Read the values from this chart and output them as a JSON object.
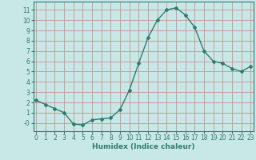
{
  "x": [
    0,
    1,
    2,
    3,
    4,
    5,
    6,
    7,
    8,
    9,
    10,
    11,
    12,
    13,
    14,
    15,
    16,
    17,
    18,
    19,
    20,
    21,
    22,
    23
  ],
  "y": [
    2.2,
    1.8,
    1.4,
    1.0,
    -0.1,
    -0.2,
    0.3,
    0.4,
    0.5,
    1.3,
    3.2,
    5.8,
    8.3,
    10.0,
    11.0,
    11.2,
    10.5,
    9.3,
    7.0,
    6.0,
    5.8,
    5.3,
    5.0,
    5.5
  ],
  "line_color": "#2d7d6f",
  "bg_color": "#c8e8e8",
  "grid_color": "#d08080",
  "xlabel": "Humidex (Indice chaleur)",
  "ylim": [
    -0.8,
    11.8
  ],
  "xlim": [
    -0.3,
    23.3
  ],
  "yticks": [
    0,
    1,
    2,
    3,
    4,
    5,
    6,
    7,
    8,
    9,
    10,
    11
  ],
  "ytick_labels": [
    "-0",
    "1",
    "2",
    "3",
    "4",
    "5",
    "6",
    "7",
    "8",
    "9",
    "10",
    "11"
  ],
  "xticks": [
    0,
    1,
    2,
    3,
    4,
    5,
    6,
    7,
    8,
    9,
    10,
    11,
    12,
    13,
    14,
    15,
    16,
    17,
    18,
    19,
    20,
    21,
    22,
    23
  ],
  "tick_color": "#2d7d6f",
  "xlabel_color": "#2d7d6f",
  "marker": "D",
  "markersize": 2.0,
  "linewidth": 1.0,
  "tick_fontsize": 5.5,
  "xlabel_fontsize": 6.5
}
